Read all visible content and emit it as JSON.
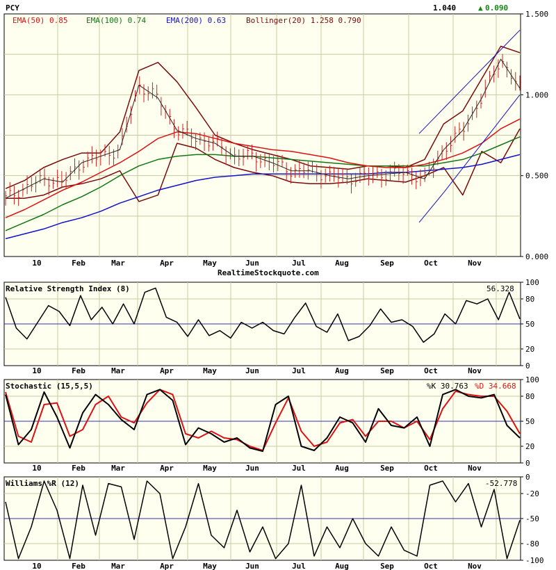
{
  "symbol": "PCY",
  "price": "1.040",
  "change": "0.090",
  "change_arrow": "▲",
  "watermark": "RealtimeStockquote.com",
  "colors": {
    "background": "#fffff0",
    "grid": "#c8c8a0",
    "price_bar": "#cc2020",
    "ema50": "#dd1111",
    "ema100": "#117711",
    "ema200": "#1111cc",
    "bollinger": "#7a0a0a",
    "midline": "#3333aa",
    "osc": "#000000",
    "signal": "#dd1111",
    "change": "#118811"
  },
  "legend": [
    {
      "label": "EMA(50) 0.85",
      "color": "#dd1111"
    },
    {
      "label": "EMA(100) 0.74",
      "color": "#117711"
    },
    {
      "label": "EMA(200) 0.63",
      "color": "#1111cc"
    },
    {
      "label": "Bollinger(20) 1.258 0.790",
      "color": "#7a0a0a"
    }
  ],
  "month_labels": [
    "10",
    "Feb",
    "Mar",
    "Apr",
    "May",
    "Jun",
    "Jul",
    "Aug",
    "Sep",
    "Oct",
    "Nov"
  ],
  "chart_data": [
    {
      "type": "line",
      "title": "PCY",
      "ylim": [
        0.0,
        1.5
      ],
      "y_ticks": [
        "1.500",
        "1.000",
        "0.500",
        "0.000"
      ],
      "series": [
        {
          "name": "EMA(50) 0.85",
          "values": [
            0.24,
            0.29,
            0.35,
            0.41,
            0.46,
            0.52,
            0.58,
            0.65,
            0.73,
            0.77,
            0.76,
            0.73,
            0.7,
            0.68,
            0.66,
            0.65,
            0.63,
            0.61,
            0.58,
            0.56,
            0.55,
            0.55,
            0.57,
            0.6,
            0.64,
            0.7,
            0.79,
            0.85
          ]
        },
        {
          "name": "EMA(100) 0.74",
          "values": [
            0.16,
            0.21,
            0.26,
            0.32,
            0.37,
            0.43,
            0.5,
            0.56,
            0.6,
            0.62,
            0.63,
            0.63,
            0.62,
            0.62,
            0.61,
            0.6,
            0.59,
            0.58,
            0.57,
            0.56,
            0.56,
            0.56,
            0.56,
            0.58,
            0.6,
            0.64,
            0.69,
            0.74
          ]
        },
        {
          "name": "EMA(200) 0.63",
          "values": [
            0.11,
            0.14,
            0.17,
            0.21,
            0.24,
            0.28,
            0.33,
            0.37,
            0.41,
            0.44,
            0.47,
            0.49,
            0.5,
            0.51,
            0.51,
            0.51,
            0.51,
            0.51,
            0.51,
            0.51,
            0.52,
            0.52,
            0.53,
            0.54,
            0.55,
            0.57,
            0.6,
            0.63
          ]
        },
        {
          "name": "Bollinger upper",
          "values": [
            0.42,
            0.47,
            0.55,
            0.6,
            0.64,
            0.64,
            0.77,
            1.15,
            1.2,
            1.08,
            0.92,
            0.75,
            0.7,
            0.66,
            0.63,
            0.6,
            0.56,
            0.55,
            0.54,
            0.56,
            0.56,
            0.55,
            0.6,
            0.82,
            0.9,
            1.1,
            1.3,
            1.26
          ]
        },
        {
          "name": "Bollinger lower",
          "values": [
            0.36,
            0.36,
            0.38,
            0.43,
            0.45,
            0.48,
            0.53,
            0.34,
            0.38,
            0.7,
            0.67,
            0.6,
            0.55,
            0.52,
            0.5,
            0.46,
            0.45,
            0.45,
            0.46,
            0.48,
            0.47,
            0.46,
            0.5,
            0.55,
            0.38,
            0.65,
            0.58,
            0.79
          ]
        },
        {
          "name": "Close",
          "values": [
            0.36,
            0.42,
            0.48,
            0.46,
            0.58,
            0.62,
            0.66,
            1.06,
            0.98,
            0.78,
            0.73,
            0.7,
            0.62,
            0.62,
            0.58,
            0.53,
            0.53,
            0.5,
            0.48,
            0.5,
            0.51,
            0.52,
            0.48,
            0.66,
            0.78,
            0.98,
            1.22,
            1.04
          ]
        },
        {
          "name": "Channel upper",
          "values": [
            0.76,
            0.92,
            1.08,
            1.24,
            1.4
          ]
        },
        {
          "name": "Channel lower",
          "values": [
            0.21,
            0.4,
            0.6,
            0.8,
            1.0
          ]
        }
      ]
    },
    {
      "type": "line",
      "title": "Relative Strength Index (8)",
      "value_label": "56.328",
      "ylim": [
        0,
        100
      ],
      "y_ticks": [
        "100",
        "80",
        "50",
        "20",
        "0"
      ],
      "series": [
        {
          "name": "RSI",
          "values": [
            82,
            45,
            32,
            52,
            72,
            65,
            48,
            84,
            55,
            70,
            50,
            74,
            50,
            88,
            93,
            58,
            52,
            35,
            55,
            36,
            42,
            33,
            52,
            45,
            52,
            42,
            38,
            58,
            75,
            47,
            40,
            62,
            30,
            35,
            48,
            68,
            52,
            55,
            47,
            28,
            38,
            62,
            50,
            78,
            74,
            80,
            55,
            88,
            56
          ]
        }
      ]
    },
    {
      "type": "line",
      "title": "Stochastic (15,5,5)",
      "ylim": [
        0,
        100
      ],
      "y_ticks": [
        "100",
        "80",
        "50",
        "20",
        "0"
      ],
      "series": [
        {
          "name": "%K 30.763",
          "values": [
            82,
            22,
            40,
            85,
            55,
            18,
            60,
            82,
            70,
            52,
            40,
            82,
            88,
            75,
            22,
            42,
            35,
            25,
            30,
            18,
            14,
            70,
            80,
            20,
            15,
            30,
            55,
            48,
            25,
            65,
            45,
            42,
            55,
            20,
            82,
            88,
            80,
            78,
            82,
            45,
            30
          ]
        },
        {
          "name": "%D 34.668",
          "values": [
            85,
            32,
            25,
            70,
            72,
            32,
            40,
            70,
            80,
            55,
            48,
            72,
            88,
            82,
            35,
            30,
            38,
            30,
            28,
            20,
            15,
            48,
            78,
            38,
            20,
            25,
            48,
            52,
            32,
            50,
            50,
            42,
            50,
            28,
            65,
            86,
            82,
            80,
            80,
            62,
            35
          ]
        }
      ]
    },
    {
      "type": "line",
      "title": "Williams %R (12)",
      "value_label": "-52.778",
      "ylim": [
        -100,
        0
      ],
      "y_ticks": [
        "0",
        "-20",
        "-50",
        "-80",
        "-100"
      ],
      "series": [
        {
          "name": "%R",
          "values": [
            -30,
            -98,
            -60,
            -5,
            -40,
            -98,
            -10,
            -70,
            -8,
            -12,
            -75,
            -5,
            -20,
            -98,
            -60,
            -8,
            -70,
            -85,
            -40,
            -90,
            -60,
            -98,
            -80,
            -10,
            -95,
            -60,
            -85,
            -50,
            -80,
            -95,
            -60,
            -88,
            -95,
            -10,
            -5,
            -30,
            -8,
            -60,
            -15,
            -98,
            -52
          ]
        }
      ]
    }
  ]
}
